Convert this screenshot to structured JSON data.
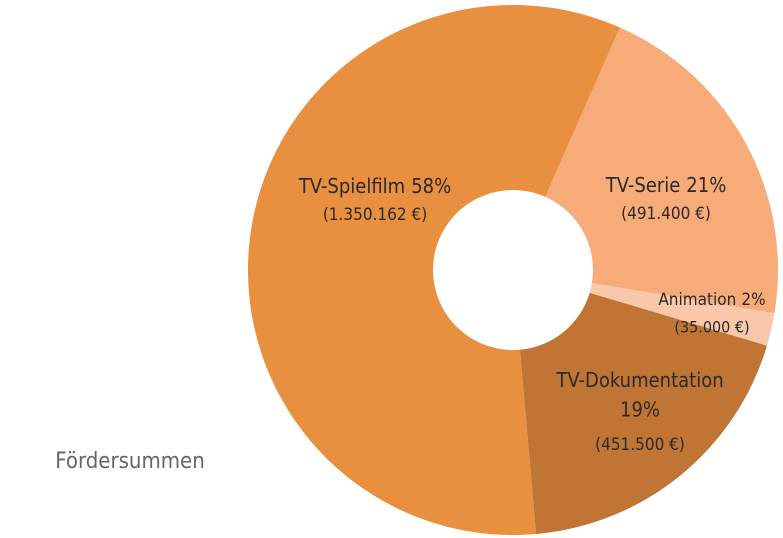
{
  "chart_data": {
    "type": "donut",
    "title": "Fördersummen",
    "categories": [
      "TV-Spielfilm",
      "TV-Serie",
      "Animation",
      "TV-Dokumentation"
    ],
    "values": [
      58,
      21,
      2,
      19
    ],
    "value_labels": [
      "58%",
      "21%",
      "2%",
      "19%"
    ],
    "amounts": [
      1350162,
      491400,
      35000,
      451500
    ],
    "amount_labels": [
      "(1.350.162 €)",
      "(491.400 €)",
      "(35.000 €)",
      "(451.500 €)"
    ],
    "colors": [
      "#e88f40",
      "#f6ab79",
      "#f9c8aa",
      "#c07535"
    ]
  }
}
